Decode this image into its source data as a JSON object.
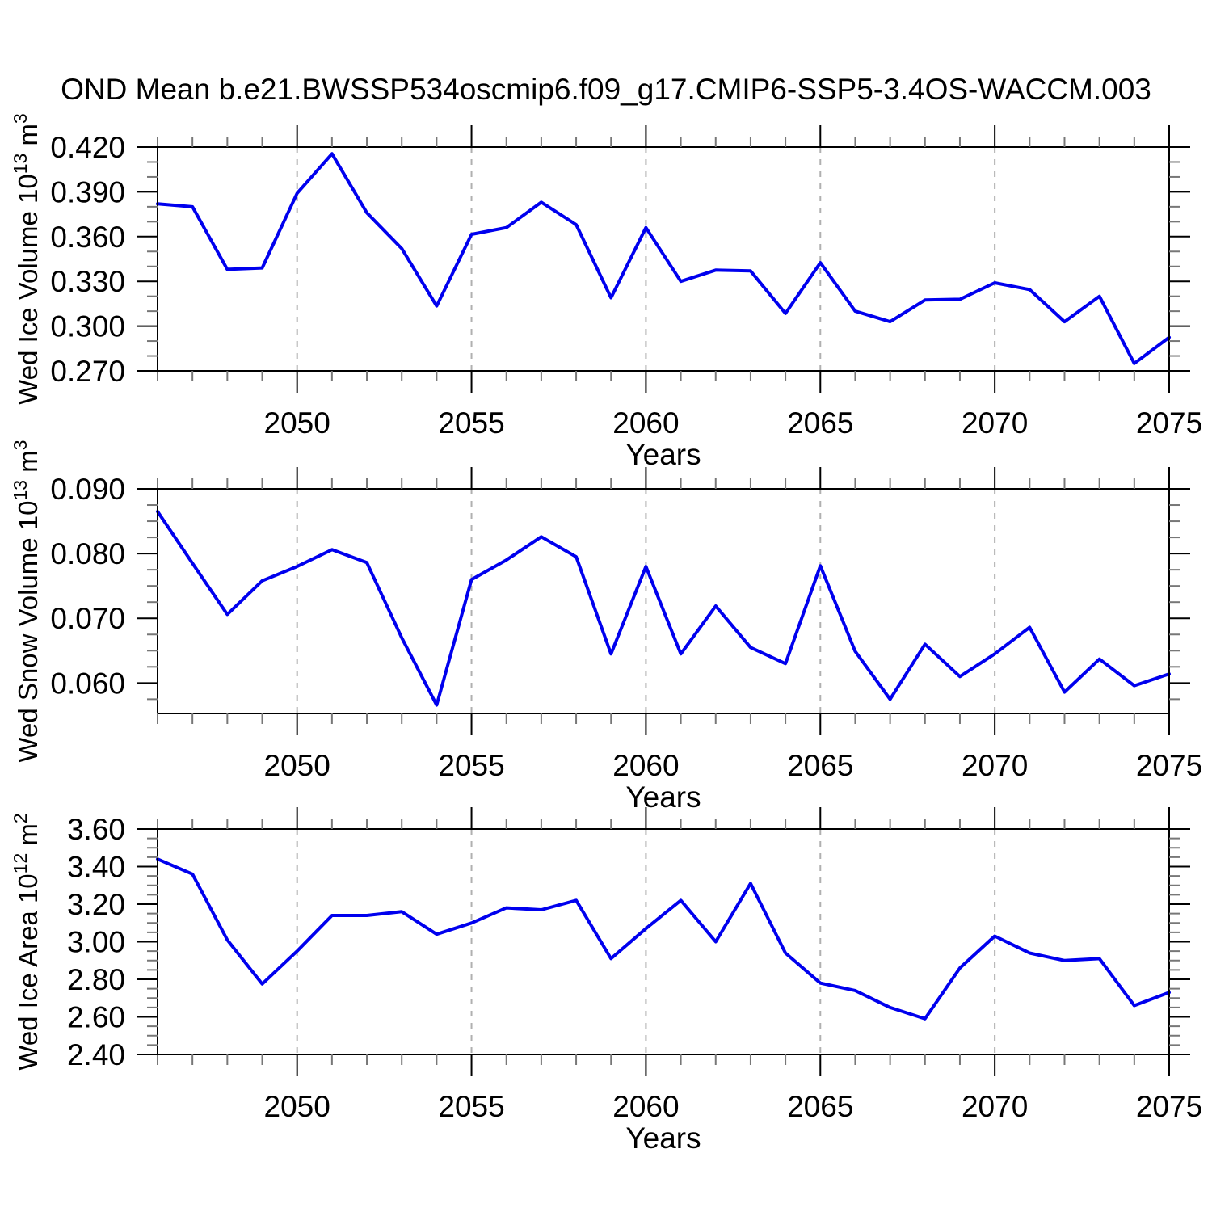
{
  "title": "OND Mean b.e21.BWSSP534oscmip6.f09_g17.CMIP6-SSP5-3.4OS-WACCM.003",
  "colors": {
    "line": "#0000ee",
    "grid": "#b0b0b0",
    "axis": "#000000",
    "minor_tick": "#777777",
    "text": "#000000",
    "background": "#ffffff"
  },
  "chart_data": {
    "type": "line",
    "title": "OND Mean b.e21.BWSSP534oscmip6.f09_g17.CMIP6-SSP5-3.4OS-WACCM.003",
    "x": {
      "label": "Years",
      "years": [
        2046,
        2047,
        2048,
        2049,
        2050,
        2051,
        2052,
        2053,
        2054,
        2055,
        2056,
        2057,
        2058,
        2059,
        2060,
        2061,
        2062,
        2063,
        2064,
        2065,
        2066,
        2067,
        2068,
        2069,
        2070,
        2071,
        2072,
        2073,
        2074,
        2075
      ],
      "ticks_major": [
        2050,
        2055,
        2060,
        2065,
        2070,
        2075
      ],
      "gridlines": [
        2050,
        2055,
        2060,
        2065,
        2070
      ],
      "xlim": [
        2046,
        2075
      ]
    },
    "panels": [
      {
        "name": "wed-ice-volume",
        "ylabel_text": "Wed Ice Volume 10^13 m^3",
        "ylabel_segments": [
          {
            "text": "Wed Ice Volume 10"
          },
          {
            "text": "13",
            "sup": true
          },
          {
            "text": " m"
          },
          {
            "text": "3",
            "sup": true
          }
        ],
        "ylim": [
          0.27,
          0.42
        ],
        "yticks_major": [
          0.27,
          0.3,
          0.33,
          0.36,
          0.39,
          0.42
        ],
        "y_minor_step": 0.01,
        "tick_decimals": 3,
        "values": [
          0.382,
          0.38,
          0.338,
          0.339,
          0.389,
          0.4155,
          0.376,
          0.352,
          0.3135,
          0.3615,
          0.366,
          0.383,
          0.368,
          0.319,
          0.366,
          0.33,
          0.3375,
          0.337,
          0.3085,
          0.3425,
          0.31,
          0.303,
          0.3175,
          0.318,
          0.329,
          0.3245,
          0.303,
          0.32,
          0.275,
          0.2925
        ]
      },
      {
        "name": "wed-snow-volume",
        "ylabel_text": "Wed Snow Volume 10^13 m^3",
        "ylabel_segments": [
          {
            "text": "Wed Snow Volume 10"
          },
          {
            "text": "13",
            "sup": true
          },
          {
            "text": " m"
          },
          {
            "text": "3",
            "sup": true
          }
        ],
        "ylim": [
          0.0553,
          0.09
        ],
        "yticks_major": [
          0.06,
          0.07,
          0.08,
          0.09
        ],
        "y_minor_step": 0.0025,
        "tick_decimals": 3,
        "values": [
          0.0865,
          0.0785,
          0.0706,
          0.0758,
          0.078,
          0.0806,
          0.0786,
          0.067,
          0.0566,
          0.076,
          0.079,
          0.0826,
          0.0795,
          0.0645,
          0.078,
          0.0645,
          0.0719,
          0.0655,
          0.063,
          0.0781,
          0.0649,
          0.0575,
          0.066,
          0.061,
          0.0645,
          0.0686,
          0.0586,
          0.0637,
          0.0596,
          0.0614
        ]
      },
      {
        "name": "wed-ice-area",
        "ylabel_text": "Wed Ice Area 10^12 m^2",
        "ylabel_segments": [
          {
            "text": "Wed Ice Area 10"
          },
          {
            "text": "12",
            "sup": true
          },
          {
            "text": " m"
          },
          {
            "text": "2",
            "sup": true
          }
        ],
        "ylim": [
          2.4,
          3.6
        ],
        "yticks_major": [
          2.4,
          2.6,
          2.8,
          3.0,
          3.2,
          3.4,
          3.6
        ],
        "y_minor_step": 0.05,
        "tick_decimals": 2,
        "values": [
          3.44,
          3.36,
          3.01,
          2.775,
          2.95,
          3.14,
          3.14,
          3.16,
          3.04,
          3.1,
          3.18,
          3.17,
          3.22,
          2.91,
          3.07,
          3.22,
          3.0,
          3.31,
          2.94,
          2.78,
          2.74,
          2.65,
          2.59,
          2.86,
          3.03,
          2.94,
          2.9,
          2.91,
          2.66,
          2.73
        ]
      }
    ]
  }
}
